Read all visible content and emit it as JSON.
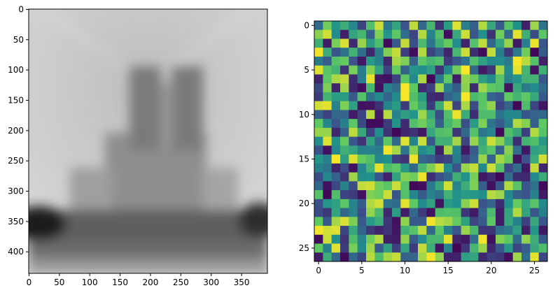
{
  "chart_data": [
    {
      "type": "heatmap",
      "colormap": "gray",
      "title": "",
      "xlabel": "",
      "ylabel": "",
      "image_shape": [
        436,
        393
      ],
      "xlim": [
        -0.5,
        392.5
      ],
      "ylim": [
        435.5,
        -0.5
      ],
      "xticks": [
        0,
        50,
        100,
        150,
        200,
        250,
        300,
        350
      ],
      "yticks": [
        0,
        50,
        100,
        150,
        200,
        250,
        300,
        350,
        400
      ],
      "xtick_labels": [
        "0",
        "50",
        "100",
        "150",
        "200",
        "250",
        "300",
        "350"
      ],
      "ytick_labels": [
        "0",
        "50",
        "100",
        "150",
        "200",
        "250",
        "300",
        "350",
        "400"
      ],
      "description": "Blurred grayscale image of a cathedral facade with twin towers; dark band near rows 300-400 at both edges"
    },
    {
      "type": "heatmap",
      "colormap": "viridis",
      "title": "",
      "xlabel": "",
      "ylabel": "",
      "shape": [
        27,
        27
      ],
      "xlim": [
        -0.5,
        26.5
      ],
      "ylim": [
        26.5,
        -0.5
      ],
      "xticks": [
        0,
        5,
        10,
        15,
        20,
        25
      ],
      "yticks": [
        0,
        5,
        10,
        15,
        20,
        25
      ],
      "xtick_labels": [
        "0",
        "5",
        "10",
        "15",
        "20",
        "25"
      ],
      "ytick_labels": [
        "0",
        "5",
        "10",
        "15",
        "20",
        "25"
      ],
      "values": [
        [
          0.35,
          0.78,
          0.52,
          0.62,
          0.46,
          0.2,
          0.7,
          0.92,
          0.4,
          0.58,
          0.25,
          0.9,
          0.33,
          0.66,
          0.15,
          0.55,
          0.95,
          0.42,
          0.3,
          0.88,
          0.6,
          0.28,
          0.72,
          0.5,
          0.1,
          0.85,
          0.38
        ],
        [
          0.82,
          0.93,
          0.48,
          0.1,
          0.58,
          0.66,
          0.3,
          0.8,
          0.52,
          0.74,
          0.36,
          0.21,
          0.88,
          0.44,
          0.7,
          0.04,
          0.6,
          0.92,
          0.27,
          0.5,
          0.15,
          0.78,
          0.34,
          0.96,
          0.63,
          0.23,
          0.73
        ],
        [
          0.63,
          0.08,
          0.79,
          0.94,
          0.13,
          0.84,
          0.55,
          0.69,
          0.03,
          0.28,
          0.91,
          0.24,
          0.68,
          0.39,
          0.63,
          0.76,
          0.48,
          0.11,
          0.71,
          0.9,
          0.33,
          0.58,
          0.84,
          0.08,
          0.42,
          0.97,
          0.26
        ],
        [
          0.98,
          0.62,
          0.26,
          0.37,
          0.64,
          0.36,
          0.12,
          0.42,
          0.8,
          0.91,
          0.19,
          0.04,
          0.88,
          0.2,
          0.31,
          0.11,
          0.66,
          0.92,
          0.14,
          0.03,
          0.91,
          0.42,
          0.17,
          0.41,
          0.78,
          0.02,
          0.29
        ],
        [
          0.41,
          0.29,
          0.72,
          0.76,
          0.25,
          0.07,
          0.53,
          0.44,
          0.12,
          0.86,
          0.8,
          0.31,
          0.74,
          0.65,
          0.7,
          0.18,
          0.27,
          0.38,
          0.7,
          0.56,
          0.47,
          0.49,
          0.41,
          0.99,
          0.89,
          0.71,
          0.1
        ],
        [
          0.95,
          0.72,
          0.65,
          0.16,
          0.79,
          0.42,
          0.81,
          0.58,
          0.2,
          0.76,
          0.31,
          0.52,
          0.49,
          0.56,
          0.15,
          0.46,
          0.78,
          0.99,
          0.33,
          0.08,
          0.17,
          0.86,
          0.47,
          0.96,
          0.65,
          0.06,
          0.63
        ],
        [
          0.11,
          0.74,
          0.87,
          0.91,
          0.13,
          0.42,
          0.96,
          0.07,
          0.05,
          0.2,
          0.74,
          0.47,
          0.87,
          0.02,
          0.41,
          0.75,
          0.09,
          0.83,
          0.77,
          0.56,
          0.47,
          0.72,
          0.44,
          0.52,
          0.64,
          0.65,
          0.27
        ],
        [
          0.22,
          0.8,
          0.11,
          0.85,
          0.12,
          0.04,
          0.67,
          0.05,
          0.44,
          0.36,
          0.99,
          0.75,
          0.13,
          0.19,
          0.85,
          0.42,
          0.29,
          0.82,
          0.13,
          0.85,
          0.75,
          0.71,
          0.06,
          0.6,
          0.41,
          0.47,
          0.35
        ],
        [
          0.18,
          0.65,
          0.55,
          0.54,
          0.28,
          0.71,
          0.37,
          0.47,
          0.32,
          0.47,
          0.99,
          0.7,
          0.55,
          0.13,
          0.11,
          0.32,
          0.39,
          0.99,
          0.68,
          0.73,
          0.32,
          0.27,
          0.75,
          0.65,
          0.74,
          0.6,
          0.28
        ],
        [
          0.93,
          0.96,
          0.44,
          0.8,
          0.56,
          0.05,
          0.06,
          0.15,
          0.45,
          0.54,
          0.18,
          0.76,
          0.61,
          0.18,
          0.62,
          0.92,
          0.2,
          0.87,
          0.23,
          0.73,
          0.83,
          0.2,
          0.32,
          0.02,
          0.69,
          0.21,
          0.07
        ],
        [
          0.31,
          0.2,
          0.34,
          0.32,
          0.08,
          0.2,
          0.89,
          0.08,
          0.89,
          0.44,
          0.56,
          0.52,
          0.85,
          0.59,
          0.23,
          0.7,
          0.97,
          0.61,
          0.14,
          0.69,
          0.69,
          0.38,
          0.47,
          0.46,
          0.26,
          0.32,
          0.34
        ],
        [
          0.75,
          0.46,
          0.26,
          0.43,
          0.74,
          0.22,
          0.03,
          0.03,
          0.18,
          0.51,
          0.13,
          0.71,
          0.78,
          0.67,
          0.3,
          0.66,
          0.76,
          0.24,
          0.54,
          0.8,
          0.38,
          0.29,
          0.43,
          0.88,
          0.81,
          0.3,
          0.75
        ],
        [
          0.84,
          0.84,
          0.12,
          0.3,
          0.9,
          0.6,
          0.19,
          0.49,
          0.16,
          0.02,
          0.12,
          0.15,
          0.07,
          0.59,
          0.7,
          0.72,
          0.17,
          0.34,
          0.71,
          0.39,
          0.45,
          0.03,
          0.7,
          0.6,
          0.19,
          0.88,
          0.72
        ],
        [
          0.48,
          0.95,
          0.51,
          0.76,
          0.27,
          0.15,
          0.57,
          0.35,
          0.74,
          0.33,
          0.95,
          0.45,
          0.92,
          0.27,
          0.64,
          0.63,
          0.86,
          0.21,
          0.84,
          0.6,
          0.92,
          0.82,
          0.61,
          0.14,
          0.65,
          0.7,
          0.53
        ],
        [
          0.25,
          0.05,
          0.46,
          0.63,
          0.58,
          0.44,
          0.44,
          0.42,
          0.98,
          0.86,
          0.39,
          0.81,
          0.48,
          0.54,
          0.1,
          0.86,
          0.45,
          0.07,
          0.28,
          0.64,
          0.72,
          0.3,
          0.82,
          0.36,
          0.07,
          0.56,
          0.6
        ],
        [
          0.52,
          0.44,
          0.99,
          0.56,
          0.95,
          0.76,
          0.7,
          0.46,
          0.5,
          0.19,
          0.16,
          0.97,
          0.33,
          0.29,
          0.18,
          0.21,
          0.42,
          0.22,
          0.33,
          0.84,
          0.31,
          0.86,
          0.77,
          0.06,
          0.25,
          0.61,
          0.93
        ],
        [
          0.43,
          0.39,
          0.11,
          0.23,
          0.05,
          0.46,
          0.65,
          0.96,
          0.69,
          0.74,
          0.53,
          0.34,
          0.67,
          0.8,
          0.93,
          0.48,
          0.25,
          0.84,
          0.91,
          0.47,
          0.92,
          0.72,
          0.22,
          0.36,
          0.07,
          0.91,
          0.12
        ],
        [
          0.23,
          0.46,
          0.31,
          0.16,
          0.85,
          0.49,
          0.5,
          0.26,
          0.1,
          0.57,
          0.81,
          0.78,
          0.97,
          0.14,
          0.24,
          0.32,
          0.63,
          0.5,
          0.79,
          0.07,
          0.13,
          0.02,
          0.36,
          0.13,
          0.12,
          0.47,
          0.61
        ],
        [
          0.33,
          0.05,
          0.22,
          0.44,
          0.23,
          0.91,
          0.93,
          0.78,
          0.73,
          0.92,
          0.72,
          0.02,
          0.04,
          0.4,
          0.6,
          0.93,
          0.45,
          0.62,
          0.8,
          0.3,
          0.05,
          0.27,
          0.88,
          0.72,
          0.26,
          0.37,
          0.03
        ],
        [
          0.72,
          0.02,
          0.7,
          0.2,
          0.18,
          0.05,
          0.8,
          0.77,
          0.92,
          0.26,
          0.71,
          0.46,
          0.29,
          0.44,
          0.37,
          0.64,
          0.51,
          0.54,
          0.52,
          0.49,
          0.89,
          0.85,
          0.47,
          0.3,
          0.25,
          0.44,
          0.08
        ],
        [
          0.24,
          0.52,
          0.56,
          0.73,
          0.45,
          0.29,
          0.88,
          0.93,
          0.38,
          0.35,
          0.96,
          0.75,
          0.47,
          0.57,
          0.06,
          0.54,
          0.5,
          0.82,
          0.92,
          0.25,
          0.32,
          0.13,
          0.5,
          0.76,
          0.59,
          0.72,
          0.47
        ],
        [
          0.23,
          0.17,
          0.58,
          0.34,
          0.44,
          0.23,
          0.83,
          0.68,
          0.12,
          0.55,
          0.09,
          0.34,
          0.18,
          0.05,
          0.69,
          0.71,
          0.7,
          0.17,
          0.08,
          0.32,
          0.68,
          0.08,
          0.58,
          0.88,
          0.58,
          0.27,
          0.43
        ],
        [
          0.75,
          0.28,
          0.86,
          0.94,
          0.8,
          0.28,
          0.53,
          0.61,
          0.17,
          0.05,
          0.83,
          0.28,
          0.29,
          0.98,
          0.89,
          0.86,
          0.76,
          0.57,
          0.21,
          0.28,
          0.74,
          0.08,
          0.59,
          0.44,
          0.19,
          0.6,
          0.26
        ],
        [
          0.98,
          0.93,
          0.95,
          0.21,
          0.59,
          0.32,
          0.17,
          0.11,
          0.16,
          0.06,
          0.64,
          0.72,
          0.9,
          0.34,
          0.73,
          0.43,
          0.26,
          0.84,
          0.67,
          0.16,
          0.16,
          0.36,
          0.41,
          0.56,
          0.09,
          0.52,
          0.07
        ],
        [
          0.03,
          0.92,
          0.5,
          0.15,
          0.69,
          0.45,
          0.78,
          0.88,
          0.09,
          0.08,
          0.83,
          0.29,
          0.48,
          0.67,
          0.66,
          0.96,
          0.11,
          0.07,
          0.36,
          0.98,
          0.05,
          0.81,
          0.74,
          0.35,
          0.83,
          0.62,
          0.28
        ],
        [
          0.75,
          0.44,
          0.95,
          0.18,
          0.79,
          0.47,
          0.85,
          0.29,
          0.56,
          0.19,
          0.58,
          0.18,
          0.91,
          0.62,
          0.06,
          0.45,
          0.02,
          0.17,
          0.66,
          0.84,
          0.12,
          0.26,
          0.53,
          0.21,
          0.29,
          0.6,
          0.69
        ],
        [
          0.08,
          0.62,
          0.34,
          0.03,
          0.33,
          0.21,
          0.89,
          0.69,
          0.86,
          0.91,
          0.31,
          0.32,
          0.86,
          0.98,
          0.83,
          0.1,
          0.1,
          0.56,
          0.58,
          0.12,
          0.19,
          0.17,
          0.04,
          0.85,
          0.35,
          0.96,
          0.22
        ]
      ]
    }
  ]
}
